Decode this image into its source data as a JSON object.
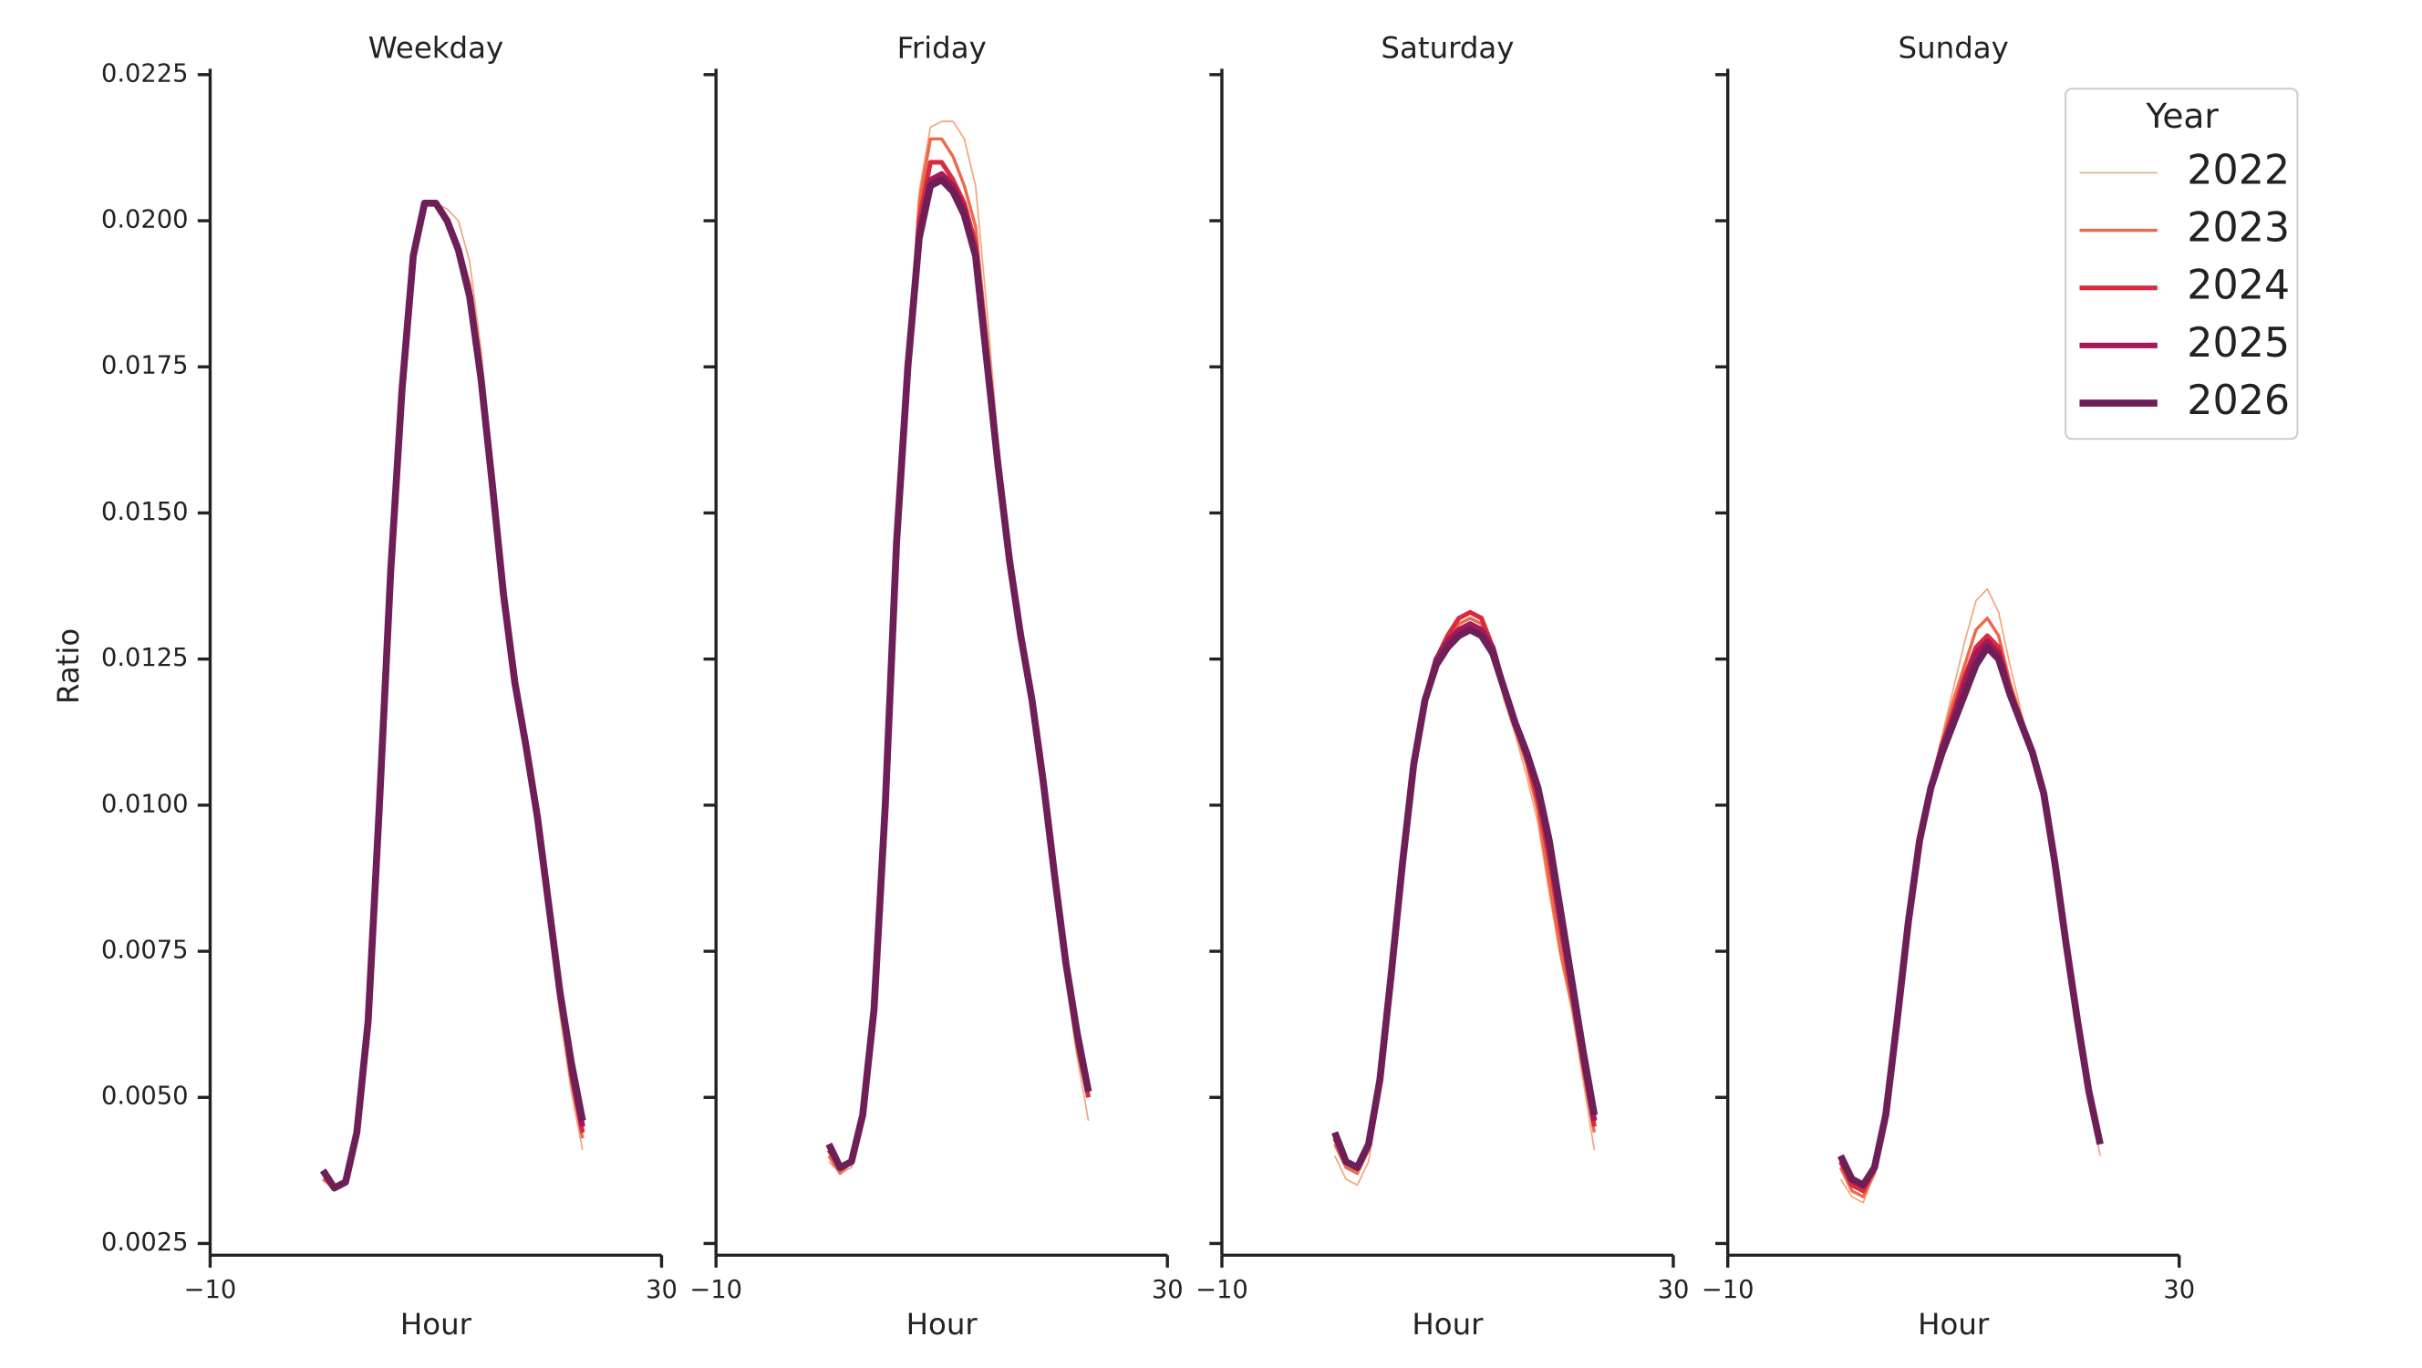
{
  "chart_data": [
    {
      "type": "line",
      "title": "Weekday",
      "xlabel": "Hour",
      "ylabel": "Ratio",
      "x": [
        0,
        1,
        2,
        3,
        4,
        5,
        6,
        7,
        8,
        9,
        10,
        11,
        12,
        13,
        14,
        15,
        16,
        17,
        18,
        19,
        20,
        21,
        22,
        23
      ],
      "xlim": [
        -10,
        30
      ],
      "xticks": [
        {
          "value": -10,
          "label": "−10"
        },
        30
      ],
      "ylim": [
        0.0023,
        0.0226
      ],
      "yticks": [
        0.0025,
        {
          "value": 0.005,
          "label": "0.0050"
        },
        0.0075,
        {
          "value": 0.01,
          "label": "0.0100"
        },
        0.0125,
        {
          "value": 0.015,
          "label": "0.0150"
        },
        0.0175,
        {
          "value": 0.02,
          "label": "0.0200"
        },
        0.0225
      ],
      "series": [
        {
          "name": "2022",
          "color": "#f5a47c",
          "values": [
            0.0036,
            0.0034,
            0.00355,
            0.0044,
            0.0063,
            0.01,
            0.014,
            0.0171,
            0.0194,
            0.0203,
            0.0203,
            0.0202,
            0.02,
            0.0193,
            0.0178,
            0.0158,
            0.0136,
            0.0121,
            0.011,
            0.0098,
            0.008,
            0.0064,
            0.0051,
            0.0041
          ]
        },
        {
          "name": "2023",
          "color": "#ec6a4a",
          "values": [
            0.0036,
            0.00345,
            0.00355,
            0.0044,
            0.0063,
            0.01,
            0.014,
            0.0171,
            0.0194,
            0.0203,
            0.0203,
            0.02,
            0.0196,
            0.0189,
            0.0173,
            0.0155,
            0.0136,
            0.0121,
            0.011,
            0.0098,
            0.0082,
            0.0066,
            0.0053,
            0.0043
          ]
        },
        {
          "name": "2024",
          "color": "#d92a3f",
          "values": [
            0.00375,
            0.00345,
            0.00355,
            0.0044,
            0.0063,
            0.01,
            0.014,
            0.0171,
            0.0194,
            0.0203,
            0.0203,
            0.02,
            0.0195,
            0.0188,
            0.0173,
            0.0155,
            0.0136,
            0.0121,
            0.011,
            0.0098,
            0.0083,
            0.0068,
            0.0054,
            0.0044
          ]
        },
        {
          "name": "2025",
          "color": "#a3195b",
          "values": [
            0.00375,
            0.00345,
            0.00355,
            0.0044,
            0.0063,
            0.01,
            0.014,
            0.0171,
            0.0194,
            0.0203,
            0.0203,
            0.02,
            0.0195,
            0.0187,
            0.0173,
            0.0155,
            0.0136,
            0.0121,
            0.011,
            0.0098,
            0.0083,
            0.0068,
            0.0055,
            0.0045
          ]
        },
        {
          "name": "2026",
          "color": "#6e1f57",
          "values": [
            0.00375,
            0.00345,
            0.00355,
            0.0044,
            0.0063,
            0.01,
            0.014,
            0.0171,
            0.0194,
            0.0203,
            0.0203,
            0.02,
            0.0195,
            0.0187,
            0.0173,
            0.0155,
            0.0136,
            0.0121,
            0.011,
            0.0098,
            0.0083,
            0.0068,
            0.0056,
            0.0046
          ]
        }
      ]
    },
    {
      "type": "line",
      "title": "Friday",
      "xlabel": "Hour",
      "x": [
        0,
        1,
        2,
        3,
        4,
        5,
        6,
        7,
        8,
        9,
        10,
        11,
        12,
        13,
        14,
        15,
        16,
        17,
        18,
        19,
        20,
        21,
        22,
        23
      ],
      "xlim": [
        -10,
        30
      ],
      "xticks": [
        {
          "value": -10,
          "label": "−10"
        },
        30
      ],
      "ylim": [
        0.0023,
        0.0226
      ],
      "yticks": [
        0.0025,
        0.005,
        0.0075,
        0.01,
        0.0125,
        0.015,
        0.0175,
        0.02,
        0.0225
      ],
      "series": [
        {
          "name": "2022",
          "color": "#f5a47c",
          "values": [
            0.0039,
            0.0037,
            0.0038,
            0.0047,
            0.0065,
            0.01,
            0.0145,
            0.0175,
            0.0205,
            0.0216,
            0.0217,
            0.0217,
            0.0214,
            0.0206,
            0.0185,
            0.0162,
            0.0142,
            0.0129,
            0.0118,
            0.0104,
            0.0087,
            0.007,
            0.0057,
            0.0046
          ]
        },
        {
          "name": "2023",
          "color": "#ec6a4a",
          "values": [
            0.004,
            0.0037,
            0.0039,
            0.0047,
            0.0065,
            0.01,
            0.0145,
            0.0175,
            0.0203,
            0.0214,
            0.0214,
            0.0211,
            0.0206,
            0.0199,
            0.018,
            0.0158,
            0.0142,
            0.0129,
            0.0118,
            0.0104,
            0.0088,
            0.0072,
            0.0058,
            0.005
          ]
        },
        {
          "name": "2024",
          "color": "#d92a3f",
          "values": [
            0.0041,
            0.0038,
            0.0039,
            0.0047,
            0.0065,
            0.01,
            0.0145,
            0.0175,
            0.02,
            0.021,
            0.021,
            0.0207,
            0.0203,
            0.0196,
            0.0176,
            0.0158,
            0.0142,
            0.0129,
            0.0118,
            0.0104,
            0.0088,
            0.0073,
            0.006,
            0.005
          ]
        },
        {
          "name": "2025",
          "color": "#a3195b",
          "values": [
            0.0042,
            0.0038,
            0.0039,
            0.0047,
            0.0065,
            0.01,
            0.0145,
            0.0175,
            0.0198,
            0.0207,
            0.0208,
            0.0206,
            0.0202,
            0.0194,
            0.0176,
            0.0158,
            0.0142,
            0.0129,
            0.0118,
            0.0104,
            0.0088,
            0.0073,
            0.0061,
            0.0051
          ]
        },
        {
          "name": "2026",
          "color": "#6e1f57",
          "values": [
            0.0042,
            0.0038,
            0.0039,
            0.0047,
            0.0065,
            0.01,
            0.0145,
            0.0175,
            0.0197,
            0.0206,
            0.0207,
            0.0205,
            0.0201,
            0.0194,
            0.0176,
            0.0158,
            0.0142,
            0.0129,
            0.0118,
            0.0104,
            0.0088,
            0.0073,
            0.0061,
            0.0051
          ]
        }
      ]
    },
    {
      "type": "line",
      "title": "Saturday",
      "xlabel": "Hour",
      "x": [
        0,
        1,
        2,
        3,
        4,
        5,
        6,
        7,
        8,
        9,
        10,
        11,
        12,
        13,
        14,
        15,
        16,
        17,
        18,
        19,
        20,
        21,
        22,
        23
      ],
      "xlim": [
        -10,
        30
      ],
      "xticks": [
        {
          "value": -10,
          "label": "−10"
        },
        30
      ],
      "ylim": [
        0.0023,
        0.0226
      ],
      "yticks": [
        0.0025,
        0.005,
        0.0075,
        0.01,
        0.0125,
        0.015,
        0.0175,
        0.02,
        0.0225
      ],
      "series": [
        {
          "name": "2022",
          "color": "#f5a47c",
          "values": [
            0.004,
            0.0036,
            0.0035,
            0.0039,
            0.0051,
            0.0069,
            0.0089,
            0.0106,
            0.0117,
            0.0124,
            0.0127,
            0.0129,
            0.0131,
            0.013,
            0.0126,
            0.0118,
            0.0112,
            0.0105,
            0.0097,
            0.0085,
            0.0074,
            0.0065,
            0.0053,
            0.0041
          ]
        },
        {
          "name": "2023",
          "color": "#ec6a4a",
          "values": [
            0.0042,
            0.0038,
            0.0037,
            0.0041,
            0.0052,
            0.007,
            0.009,
            0.0107,
            0.0118,
            0.0125,
            0.0128,
            0.0131,
            0.0132,
            0.0131,
            0.0127,
            0.0119,
            0.0113,
            0.0107,
            0.0099,
            0.0087,
            0.0075,
            0.0066,
            0.0055,
            0.0044
          ]
        },
        {
          "name": "2024",
          "color": "#d92a3f",
          "values": [
            0.0043,
            0.0039,
            0.0038,
            0.0042,
            0.0053,
            0.0071,
            0.009,
            0.0107,
            0.0118,
            0.0125,
            0.0129,
            0.0132,
            0.0133,
            0.0132,
            0.0127,
            0.012,
            0.0114,
            0.0108,
            0.0101,
            0.0091,
            0.0079,
            0.0068,
            0.0056,
            0.0045
          ]
        },
        {
          "name": "2025",
          "color": "#a3195b",
          "values": [
            0.0044,
            0.0039,
            0.0038,
            0.0042,
            0.0053,
            0.0071,
            0.009,
            0.0107,
            0.0118,
            0.0125,
            0.0128,
            0.013,
            0.0131,
            0.013,
            0.0127,
            0.012,
            0.0114,
            0.0109,
            0.0103,
            0.0093,
            0.0081,
            0.0069,
            0.0057,
            0.0046
          ]
        },
        {
          "name": "2026",
          "color": "#6e1f57",
          "values": [
            0.0044,
            0.0039,
            0.0038,
            0.0042,
            0.0053,
            0.0071,
            0.009,
            0.0107,
            0.0118,
            0.0124,
            0.0127,
            0.0129,
            0.013,
            0.0129,
            0.0126,
            0.012,
            0.0114,
            0.0109,
            0.0103,
            0.0094,
            0.0082,
            0.007,
            0.0058,
            0.0047
          ]
        }
      ]
    },
    {
      "type": "line",
      "title": "Sunday",
      "xlabel": "Hour",
      "legend_title": "Year",
      "x": [
        0,
        1,
        2,
        3,
        4,
        5,
        6,
        7,
        8,
        9,
        10,
        11,
        12,
        13,
        14,
        15,
        16,
        17,
        18,
        19,
        20,
        21,
        22,
        23
      ],
      "xlim": [
        -10,
        30
      ],
      "xticks": [
        {
          "value": -10,
          "label": "−10"
        },
        30
      ],
      "ylim": [
        0.0023,
        0.0226
      ],
      "yticks": [
        0.0025,
        0.005,
        0.0075,
        0.01,
        0.0125,
        0.015,
        0.0175,
        0.02,
        0.0225
      ],
      "series": [
        {
          "name": "2022",
          "color": "#f5a47c",
          "values": [
            0.0036,
            0.0033,
            0.0032,
            0.0037,
            0.0046,
            0.0062,
            0.008,
            0.0094,
            0.0104,
            0.0112,
            0.012,
            0.0128,
            0.0135,
            0.0137,
            0.0133,
            0.0124,
            0.0116,
            0.0109,
            0.0101,
            0.0089,
            0.0075,
            0.0062,
            0.005,
            0.004
          ]
        },
        {
          "name": "2023",
          "color": "#ec6a4a",
          "values": [
            0.0038,
            0.0034,
            0.0033,
            0.0037,
            0.0047,
            0.0062,
            0.008,
            0.0094,
            0.0104,
            0.0111,
            0.0118,
            0.0124,
            0.013,
            0.0132,
            0.0129,
            0.0121,
            0.0115,
            0.0109,
            0.0102,
            0.009,
            0.0076,
            0.0063,
            0.0051,
            0.0042
          ]
        },
        {
          "name": "2024",
          "color": "#d92a3f",
          "values": [
            0.0039,
            0.0035,
            0.0034,
            0.0038,
            0.0047,
            0.0063,
            0.008,
            0.0094,
            0.0103,
            0.011,
            0.0116,
            0.0122,
            0.0127,
            0.0129,
            0.0127,
            0.012,
            0.0114,
            0.0109,
            0.0102,
            0.009,
            0.0076,
            0.0063,
            0.0051,
            0.0042
          ]
        },
        {
          "name": "2025",
          "color": "#a3195b",
          "values": [
            0.004,
            0.0036,
            0.0035,
            0.0038,
            0.0047,
            0.0063,
            0.008,
            0.0094,
            0.0103,
            0.011,
            0.0115,
            0.0121,
            0.0126,
            0.0128,
            0.0126,
            0.0119,
            0.0114,
            0.0109,
            0.0102,
            0.009,
            0.0076,
            0.0063,
            0.0051,
            0.0042
          ]
        },
        {
          "name": "2026",
          "color": "#6e1f57",
          "values": [
            0.004,
            0.0036,
            0.0035,
            0.0038,
            0.0047,
            0.0063,
            0.008,
            0.0094,
            0.0103,
            0.0109,
            0.0114,
            0.0119,
            0.0124,
            0.0127,
            0.0125,
            0.0119,
            0.0114,
            0.0109,
            0.0102,
            0.009,
            0.0076,
            0.0063,
            0.0051,
            0.0042
          ]
        }
      ]
    }
  ]
}
